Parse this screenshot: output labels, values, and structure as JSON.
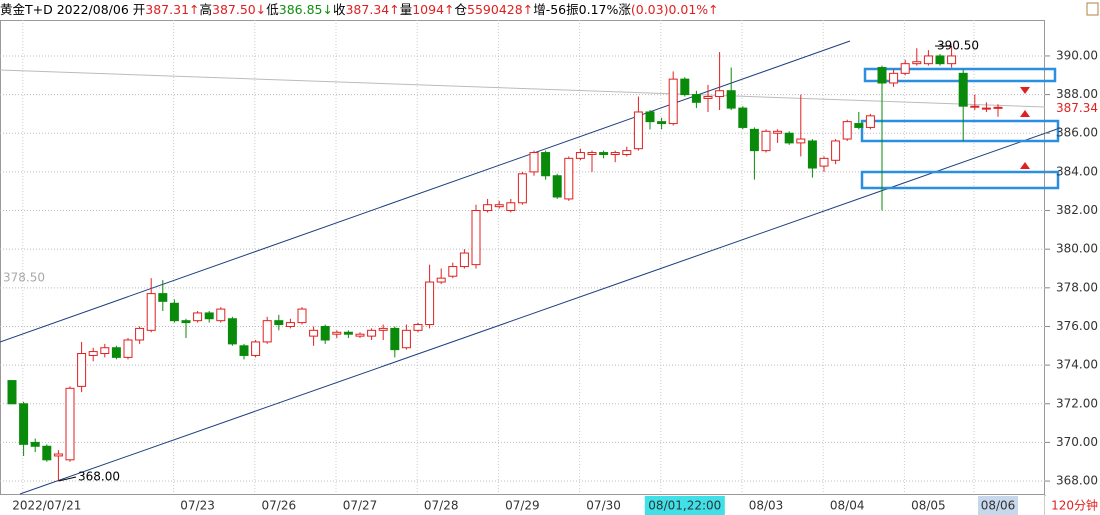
{
  "chart_data": {
    "type": "candlestick",
    "header": {
      "name": "黄金T+D",
      "date": "2022/08/06",
      "stats": [
        {
          "label": "开",
          "value": "387.31↑",
          "color": "#e02020"
        },
        {
          "label": "高",
          "value": "387.50↓",
          "color": "#e02020"
        },
        {
          "label": "低",
          "value": "386.85↓",
          "color": "#109010"
        },
        {
          "label": "收",
          "value": "387.34↑",
          "color": "#e02020"
        },
        {
          "label": "量",
          "value": "1094↑",
          "color": "#e02020"
        },
        {
          "label": "仓",
          "value": "5590428↑",
          "color": "#e02020"
        },
        {
          "label": "增",
          "value": "-56",
          "color": "#000000"
        },
        {
          "label": "振",
          "value": "0.17%",
          "color": "#000000"
        },
        {
          "label": "涨",
          "value": "(0.03)0.01%↑",
          "color": "#e02020"
        }
      ]
    },
    "period": "120分钟",
    "categories": [
      null,
      null,
      null,
      "2022/07/21",
      null,
      null,
      null,
      null,
      null,
      null,
      null,
      null,
      null,
      null,
      null,
      null,
      "07/23",
      null,
      null,
      null,
      null,
      null,
      null,
      "07/26",
      null,
      null,
      null,
      null,
      null,
      null,
      "07/27",
      null,
      null,
      null,
      null,
      null,
      null,
      "07/28",
      null,
      null,
      null,
      null,
      null,
      null,
      "07/29",
      null,
      null,
      null,
      null,
      null,
      null,
      "07/30",
      null,
      null,
      null,
      null,
      null,
      null,
      "08/01,22:00",
      null,
      null,
      null,
      null,
      null,
      null,
      "08/03",
      null,
      null,
      null,
      null,
      null,
      null,
      "08/04",
      null,
      null,
      null,
      null,
      null,
      null,
      "08/05",
      null,
      null,
      null,
      null,
      null,
      "08/06"
    ],
    "open": [
      373.2,
      372.0,
      370.0,
      369.8,
      369.3,
      369.1,
      372.9,
      374.5,
      374.6,
      374.9,
      374.4,
      375.3,
      375.8,
      377.7,
      377.2,
      376.3,
      376.3,
      376.7,
      376.3,
      376.4,
      375.0,
      374.5,
      375.2,
      376.3,
      376.0,
      376.2,
      375.5,
      376.0,
      375.6,
      375.7,
      375.5,
      375.5,
      375.8,
      375.9,
      374.9,
      375.8,
      376.1,
      378.3,
      378.6,
      379.1,
      379.2,
      382.0,
      382.2,
      382.0,
      382.4,
      384.0,
      385.0,
      383.8,
      382.6,
      384.7,
      384.9,
      385.0,
      384.9,
      384.9,
      385.2,
      387.1,
      386.6,
      386.5,
      388.8,
      388.0,
      387.8,
      387.9,
      388.2,
      387.3,
      386.2,
      385.1,
      386.0,
      386.0,
      385.5,
      385.6,
      384.3,
      384.6,
      385.7,
      386.5,
      386.3,
      389.4,
      388.6,
      389.1,
      389.6,
      389.6,
      390.0,
      389.6,
      389.1,
      387.4,
      387.3,
      387.31
    ],
    "high": [
      373.2,
      372.1,
      370.2,
      369.9,
      369.6,
      372.9,
      375.2,
      374.9,
      375.1,
      375.0,
      375.4,
      376.0,
      378.5,
      378.4,
      377.4,
      376.4,
      376.8,
      376.8,
      377.0,
      376.5,
      375.1,
      375.3,
      376.5,
      376.6,
      376.4,
      377.0,
      376.0,
      376.1,
      375.8,
      375.8,
      375.7,
      375.9,
      376.1,
      376.0,
      376.1,
      376.2,
      379.2,
      379.0,
      379.3,
      380.0,
      382.3,
      382.6,
      382.5,
      382.6,
      384.0,
      385.1,
      385.1,
      383.9,
      384.8,
      385.2,
      385.1,
      385.1,
      385.1,
      385.3,
      387.9,
      387.2,
      386.8,
      389.2,
      388.9,
      388.2,
      388.5,
      390.2,
      389.4,
      387.4,
      386.3,
      386.2,
      386.2,
      386.1,
      388.0,
      385.7,
      384.8,
      385.7,
      386.7,
      387.1,
      387.0,
      389.5,
      389.3,
      389.8,
      390.4,
      390.3,
      390.1,
      390.5,
      389.3,
      388.0,
      387.6,
      387.5
    ],
    "low": [
      372.0,
      369.3,
      369.5,
      369.0,
      368.0,
      369.0,
      372.6,
      374.2,
      374.4,
      374.3,
      374.3,
      375.1,
      375.7,
      376.8,
      376.2,
      375.4,
      376.2,
      376.2,
      376.2,
      375.0,
      374.3,
      374.4,
      375.1,
      375.8,
      375.9,
      376.1,
      375.0,
      375.1,
      375.4,
      375.4,
      375.4,
      375.3,
      375.3,
      374.4,
      374.8,
      375.7,
      375.9,
      378.2,
      378.5,
      379.0,
      379.0,
      381.9,
      382.1,
      381.9,
      382.3,
      383.8,
      383.6,
      382.6,
      382.5,
      384.6,
      384.0,
      384.7,
      384.5,
      384.8,
      385.1,
      386.2,
      386.2,
      386.4,
      387.9,
      387.3,
      387.1,
      387.2,
      387.2,
      386.2,
      383.6,
      385.0,
      385.5,
      385.4,
      384.8,
      383.7,
      384.0,
      384.4,
      385.6,
      386.2,
      386.2,
      382.0,
      388.4,
      389.0,
      389.5,
      389.5,
      389.5,
      389.4,
      385.6,
      387.2,
      387.1,
      386.85
    ],
    "close": [
      372.0,
      369.9,
      369.8,
      369.1,
      369.4,
      372.8,
      374.6,
      374.7,
      374.9,
      374.4,
      375.3,
      375.9,
      377.7,
      377.3,
      376.3,
      376.2,
      376.7,
      376.4,
      376.9,
      375.1,
      374.5,
      375.2,
      376.3,
      376.1,
      376.2,
      376.9,
      375.8,
      375.3,
      375.7,
      375.6,
      375.6,
      375.8,
      375.9,
      374.8,
      375.8,
      376.1,
      378.3,
      378.5,
      379.1,
      379.8,
      382.0,
      382.3,
      382.3,
      382.4,
      383.9,
      385.0,
      383.8,
      382.7,
      384.7,
      385.0,
      385.0,
      384.9,
      385.0,
      385.1,
      387.1,
      386.6,
      386.5,
      388.8,
      388.0,
      387.6,
      387.9,
      388.2,
      387.3,
      386.3,
      385.1,
      386.1,
      386.1,
      385.5,
      385.7,
      384.2,
      384.7,
      385.6,
      386.6,
      386.3,
      386.9,
      388.6,
      389.1,
      389.6,
      389.7,
      390.0,
      389.6,
      390.0,
      387.4,
      387.4,
      387.3,
      387.34
    ],
    "up_color": "#e02020",
    "down_color": "#0a8a0a",
    "ylim": [
      367.33,
      391.86
    ],
    "yticks": [
      {
        "value": 368,
        "label": "368.00"
      },
      {
        "value": 370,
        "label": "370.00"
      },
      {
        "value": 372,
        "label": "372.00"
      },
      {
        "value": 374,
        "label": "374.00"
      },
      {
        "value": 376,
        "label": "376.00"
      },
      {
        "value": 378,
        "label": "378.00"
      },
      {
        "value": 380,
        "label": "380.00"
      },
      {
        "value": 382,
        "label": "382.00"
      },
      {
        "value": 384,
        "label": "384.00"
      },
      {
        "value": 386,
        "label": "386.00"
      },
      {
        "value": 388,
        "label": "388.00"
      },
      {
        "value": 390,
        "label": "390.00"
      }
    ],
    "grid": true,
    "annotations": [
      {
        "label": "390.50",
        "value": 390.5
      },
      {
        "label": "368.00",
        "value": 368
      },
      {
        "label": "378.50",
        "value": 378.5
      },
      {
        "label": "387.34",
        "value": 387.34
      }
    ]
  }
}
